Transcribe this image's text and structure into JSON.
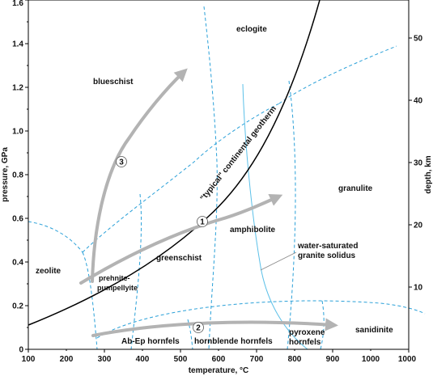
{
  "axes": {
    "xlabel": "temperature, °C",
    "ylabel_left": "pressure, GPa",
    "ylabel_right": "depth, km",
    "x_ticks": [
      "100",
      "200",
      "300",
      "400",
      "500",
      "600",
      "700",
      "800",
      "900",
      "1000"
    ],
    "y_ticks_left": [
      "0",
      "0.2",
      "0.4",
      "0.6",
      "0.8",
      "1.0",
      "1.2",
      "1.4",
      "1.6"
    ],
    "y_ticks_right": [
      "10",
      "20",
      "30",
      "40",
      "50"
    ]
  },
  "facies": {
    "eclogite": "eclogite",
    "blueschist": "blueschist",
    "granulite": "granulite",
    "amphibolite": "amphibolite",
    "greenschist": "greenschist",
    "zeolite": "zeolite",
    "prehnite_line1": "prehnite-",
    "prehnite_line2": "pumpellyite",
    "sanidinite": "sanidinite",
    "ab_ep_hornfels": "Ab-Ep hornfels",
    "hornblende_hornfels": "hornblende hornfels",
    "pyroxene_line1": "pyroxene",
    "pyroxene_line2": "hornfels"
  },
  "curves": {
    "geotherm": "\"typical\" continental geotherm",
    "solidus_line1": "water-saturated",
    "solidus_line2": "granite solidus"
  },
  "paths": {
    "path1": "1",
    "path2": "2",
    "path3": "3"
  },
  "colors": {
    "facies_boundary": "#2aa0d8",
    "solidus": "#5bc0e8",
    "geotherm": "#000000",
    "path_arrow": "#b3b3b3"
  }
}
